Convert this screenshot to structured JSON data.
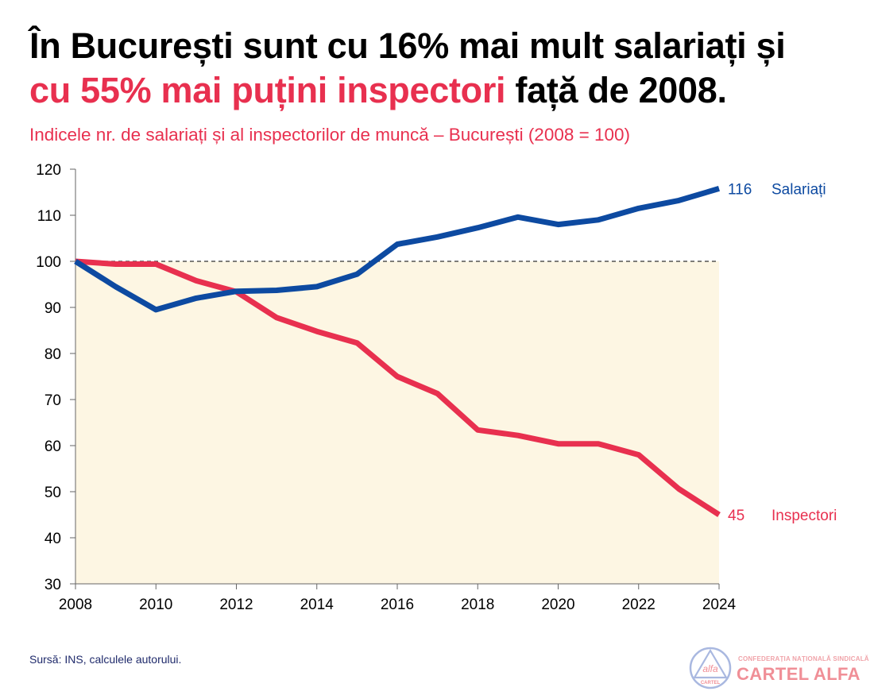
{
  "headline": {
    "part1": "În București sunt cu 16% mai mult salariați și",
    "part2_highlight": "cu 55% mai puțini inspectori",
    "part3": " față de 2008."
  },
  "colors": {
    "salariati": "#0d4aa1",
    "inspectori": "#e8304f",
    "shade": "#fdf6e3",
    "subtitle": "#e8304f"
  },
  "chart_data": {
    "type": "line",
    "title": "Indicele nr. de salariați și al inspectorilor de muncă – București (2008 = 100)",
    "xlabel": "",
    "ylabel": "",
    "x": [
      2008,
      2009,
      2010,
      2011,
      2012,
      2013,
      2014,
      2015,
      2016,
      2017,
      2018,
      2019,
      2020,
      2021,
      2022,
      2023,
      2024
    ],
    "xticks": [
      2008,
      2010,
      2012,
      2014,
      2016,
      2018,
      2020,
      2022,
      2024
    ],
    "xlim": [
      2008,
      2024
    ],
    "ylim": [
      30,
      120
    ],
    "yticks": [
      30,
      40,
      50,
      60,
      70,
      80,
      90,
      100,
      110,
      120
    ],
    "reference_line": 100,
    "shaded_region": "below 100",
    "series": [
      {
        "name": "Salariați",
        "end_label": "116",
        "values": [
          100,
          94.5,
          89.5,
          92,
          93.5,
          93.7,
          94.5,
          97.2,
          103.7,
          105.3,
          107.3,
          109.6,
          108,
          109,
          111.5,
          113.2,
          115.8
        ]
      },
      {
        "name": "Inspectori",
        "end_label": "45",
        "values": [
          100,
          99.4,
          99.4,
          95.8,
          93.4,
          87.8,
          84.8,
          82.3,
          75,
          71.3,
          63.4,
          62.2,
          60.4,
          60.4,
          58,
          50.6,
          45
        ]
      }
    ]
  },
  "footer": {
    "source": "Sursă: INS, calculele autorului.",
    "logo_line1": "CONFEDERAȚIA NAȚIONALĂ SINDICALĂ",
    "logo_line2": "CARTEL ALFA",
    "logo_mark_text": "alfa",
    "logo_mark_sub": "CARTEL"
  }
}
